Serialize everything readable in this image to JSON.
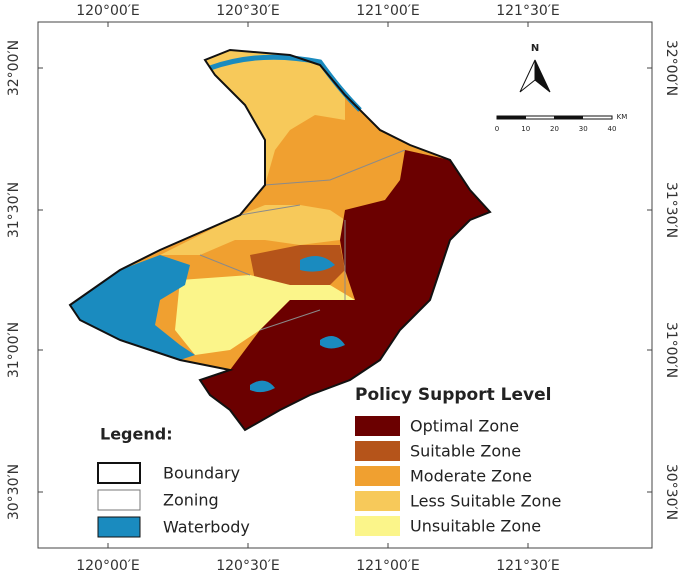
{
  "axes": {
    "top": [
      "120°00′E",
      "120°30′E",
      "121°00′E",
      "121°30′E"
    ],
    "bottom": [
      "120°00′E",
      "120°30′E",
      "121°00′E",
      "121°30′E"
    ],
    "left": [
      "32°00′N",
      "31°30′N",
      "31°00′N",
      "30°30′N"
    ],
    "right": [
      "32°00′N",
      "31°30′N",
      "31°00′N",
      "30°30′N"
    ]
  },
  "north_arrow": "N",
  "scale_bar": {
    "labels": [
      "0",
      "10",
      "20",
      "30",
      "40"
    ],
    "unit": "KM"
  },
  "legend": {
    "title": "Legend:",
    "items": [
      "Boundary",
      "Zoning",
      "Waterbody"
    ]
  },
  "policy_legend": {
    "title": "Policy Support Level",
    "items": [
      {
        "label": "Optimal Zone",
        "color": "#6b0000"
      },
      {
        "label": "Suitable Zone",
        "color": "#b5541a"
      },
      {
        "label": "Moderate Zone",
        "color": "#f0a030"
      },
      {
        "label": "Less Suitable Zone",
        "color": "#f7c95a"
      },
      {
        "label": "Unsuitable Zone",
        "color": "#fbf58a"
      }
    ]
  }
}
